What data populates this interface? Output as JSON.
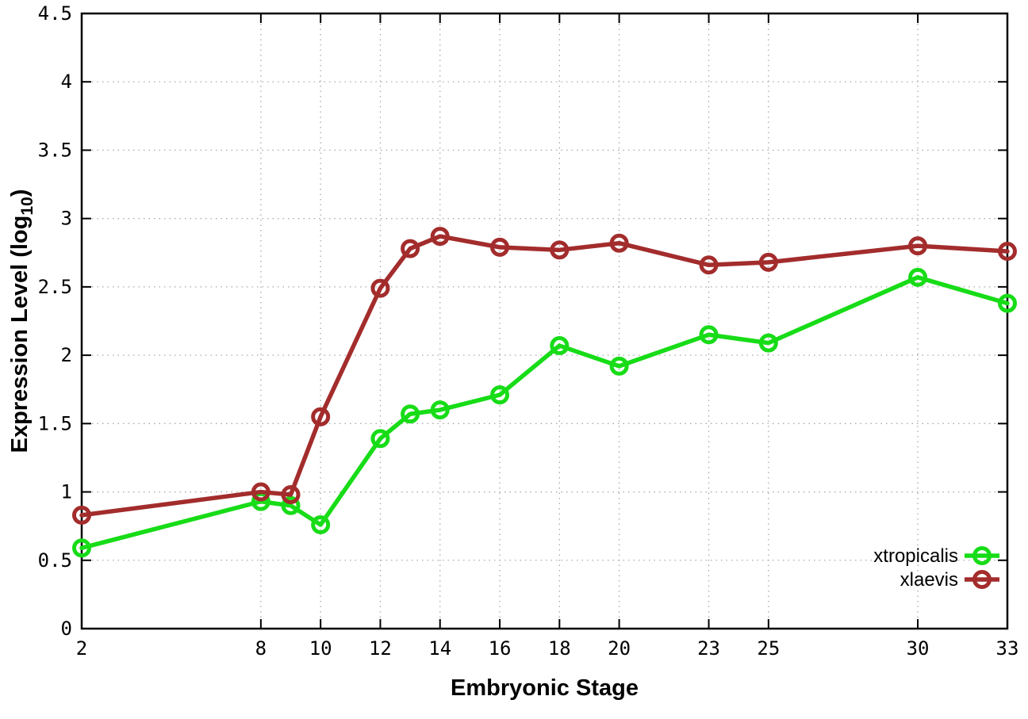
{
  "chart_data": {
    "type": "line",
    "title": "",
    "xlabel": "Embryonic Stage",
    "ylabel": "Expression Level (log10)",
    "ylabel_parts": {
      "pre": "Expression Level (log",
      "sub": "10",
      "post": ")"
    },
    "xlim": [
      2,
      33
    ],
    "ylim": [
      0,
      4.5
    ],
    "x_ticks": {
      "values": [
        2,
        8,
        10,
        12,
        14,
        16,
        18,
        20,
        23,
        25,
        30,
        33
      ],
      "labels": [
        "2",
        "8",
        "10",
        "12",
        "14",
        "16",
        "18",
        "20",
        "23",
        "25",
        "30",
        "33"
      ]
    },
    "y_ticks": {
      "values": [
        0,
        0.5,
        1,
        1.5,
        2,
        2.5,
        3,
        3.5,
        4,
        4.5
      ],
      "labels": [
        "0",
        "0.5",
        "1",
        "1.5",
        "2",
        "2.5",
        "3",
        "3.5",
        "4",
        "4.5"
      ]
    },
    "grid": true,
    "legend_position": "bottom-right",
    "x": [
      2,
      8,
      9,
      10,
      12,
      13,
      14,
      16,
      18,
      20,
      23,
      25,
      30,
      33
    ],
    "series": [
      {
        "name": "xtropicalis",
        "color": "#17dc17",
        "values": [
          0.59,
          0.93,
          0.9,
          0.76,
          1.39,
          1.57,
          1.6,
          1.71,
          2.07,
          1.92,
          2.15,
          2.09,
          2.57,
          2.38
        ]
      },
      {
        "name": "xlaevis",
        "color": "#a32c2c",
        "values": [
          0.83,
          1.0,
          0.98,
          1.55,
          2.49,
          2.78,
          2.87,
          2.79,
          2.77,
          2.82,
          2.66,
          2.68,
          2.8,
          2.76
        ]
      }
    ],
    "colors": {
      "border": "#000000",
      "grid": "#a9a9a9",
      "background": "#ffffff"
    }
  }
}
